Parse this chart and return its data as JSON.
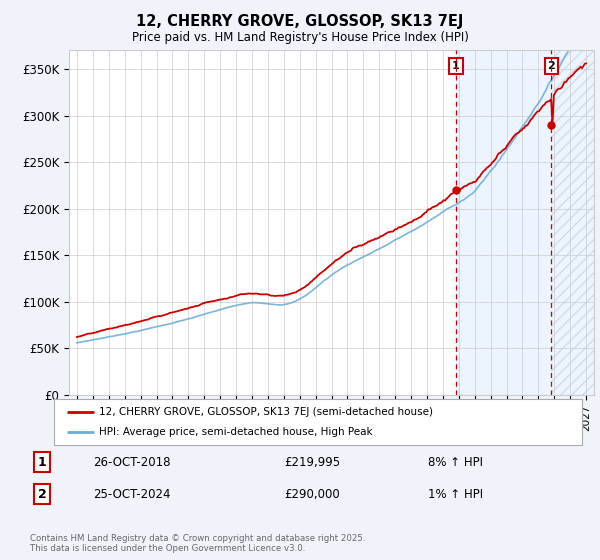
{
  "title": "12, CHERRY GROVE, GLOSSOP, SK13 7EJ",
  "subtitle": "Price paid vs. HM Land Registry's House Price Index (HPI)",
  "ylabel_ticks": [
    "£0",
    "£50K",
    "£100K",
    "£150K",
    "£200K",
    "£250K",
    "£300K",
    "£350K"
  ],
  "ytick_values": [
    0,
    50000,
    100000,
    150000,
    200000,
    250000,
    300000,
    350000
  ],
  "ylim": [
    0,
    370000
  ],
  "xlim_start": 1994.5,
  "xlim_end": 2027.5,
  "hpi_color": "#6baed6",
  "price_color": "#cc0000",
  "point1_x": 2018.82,
  "point1_y": 219995,
  "point2_x": 2024.82,
  "point2_y": 290000,
  "point1_label": "1",
  "point2_label": "2",
  "annotation_row1": [
    "1",
    "26-OCT-2018",
    "£219,995",
    "8% ↑ HPI"
  ],
  "annotation_row2": [
    "2",
    "25-OCT-2024",
    "£290,000",
    "1% ↑ HPI"
  ],
  "legend_line1": "12, CHERRY GROVE, GLOSSOP, SK13 7EJ (semi-detached house)",
  "legend_line2": "HPI: Average price, semi-detached house, High Peak",
  "footer": "Contains HM Land Registry data © Crown copyright and database right 2025.\nThis data is licensed under the Open Government Licence v3.0.",
  "bg_color": "#f0f4fa",
  "plot_bg": "#ffffff",
  "shade_color": "#ddeeff",
  "shade_start": 2018.82,
  "shade_end": 2027.5,
  "vline1_x": 2018.82,
  "vline2_x": 2024.82
}
